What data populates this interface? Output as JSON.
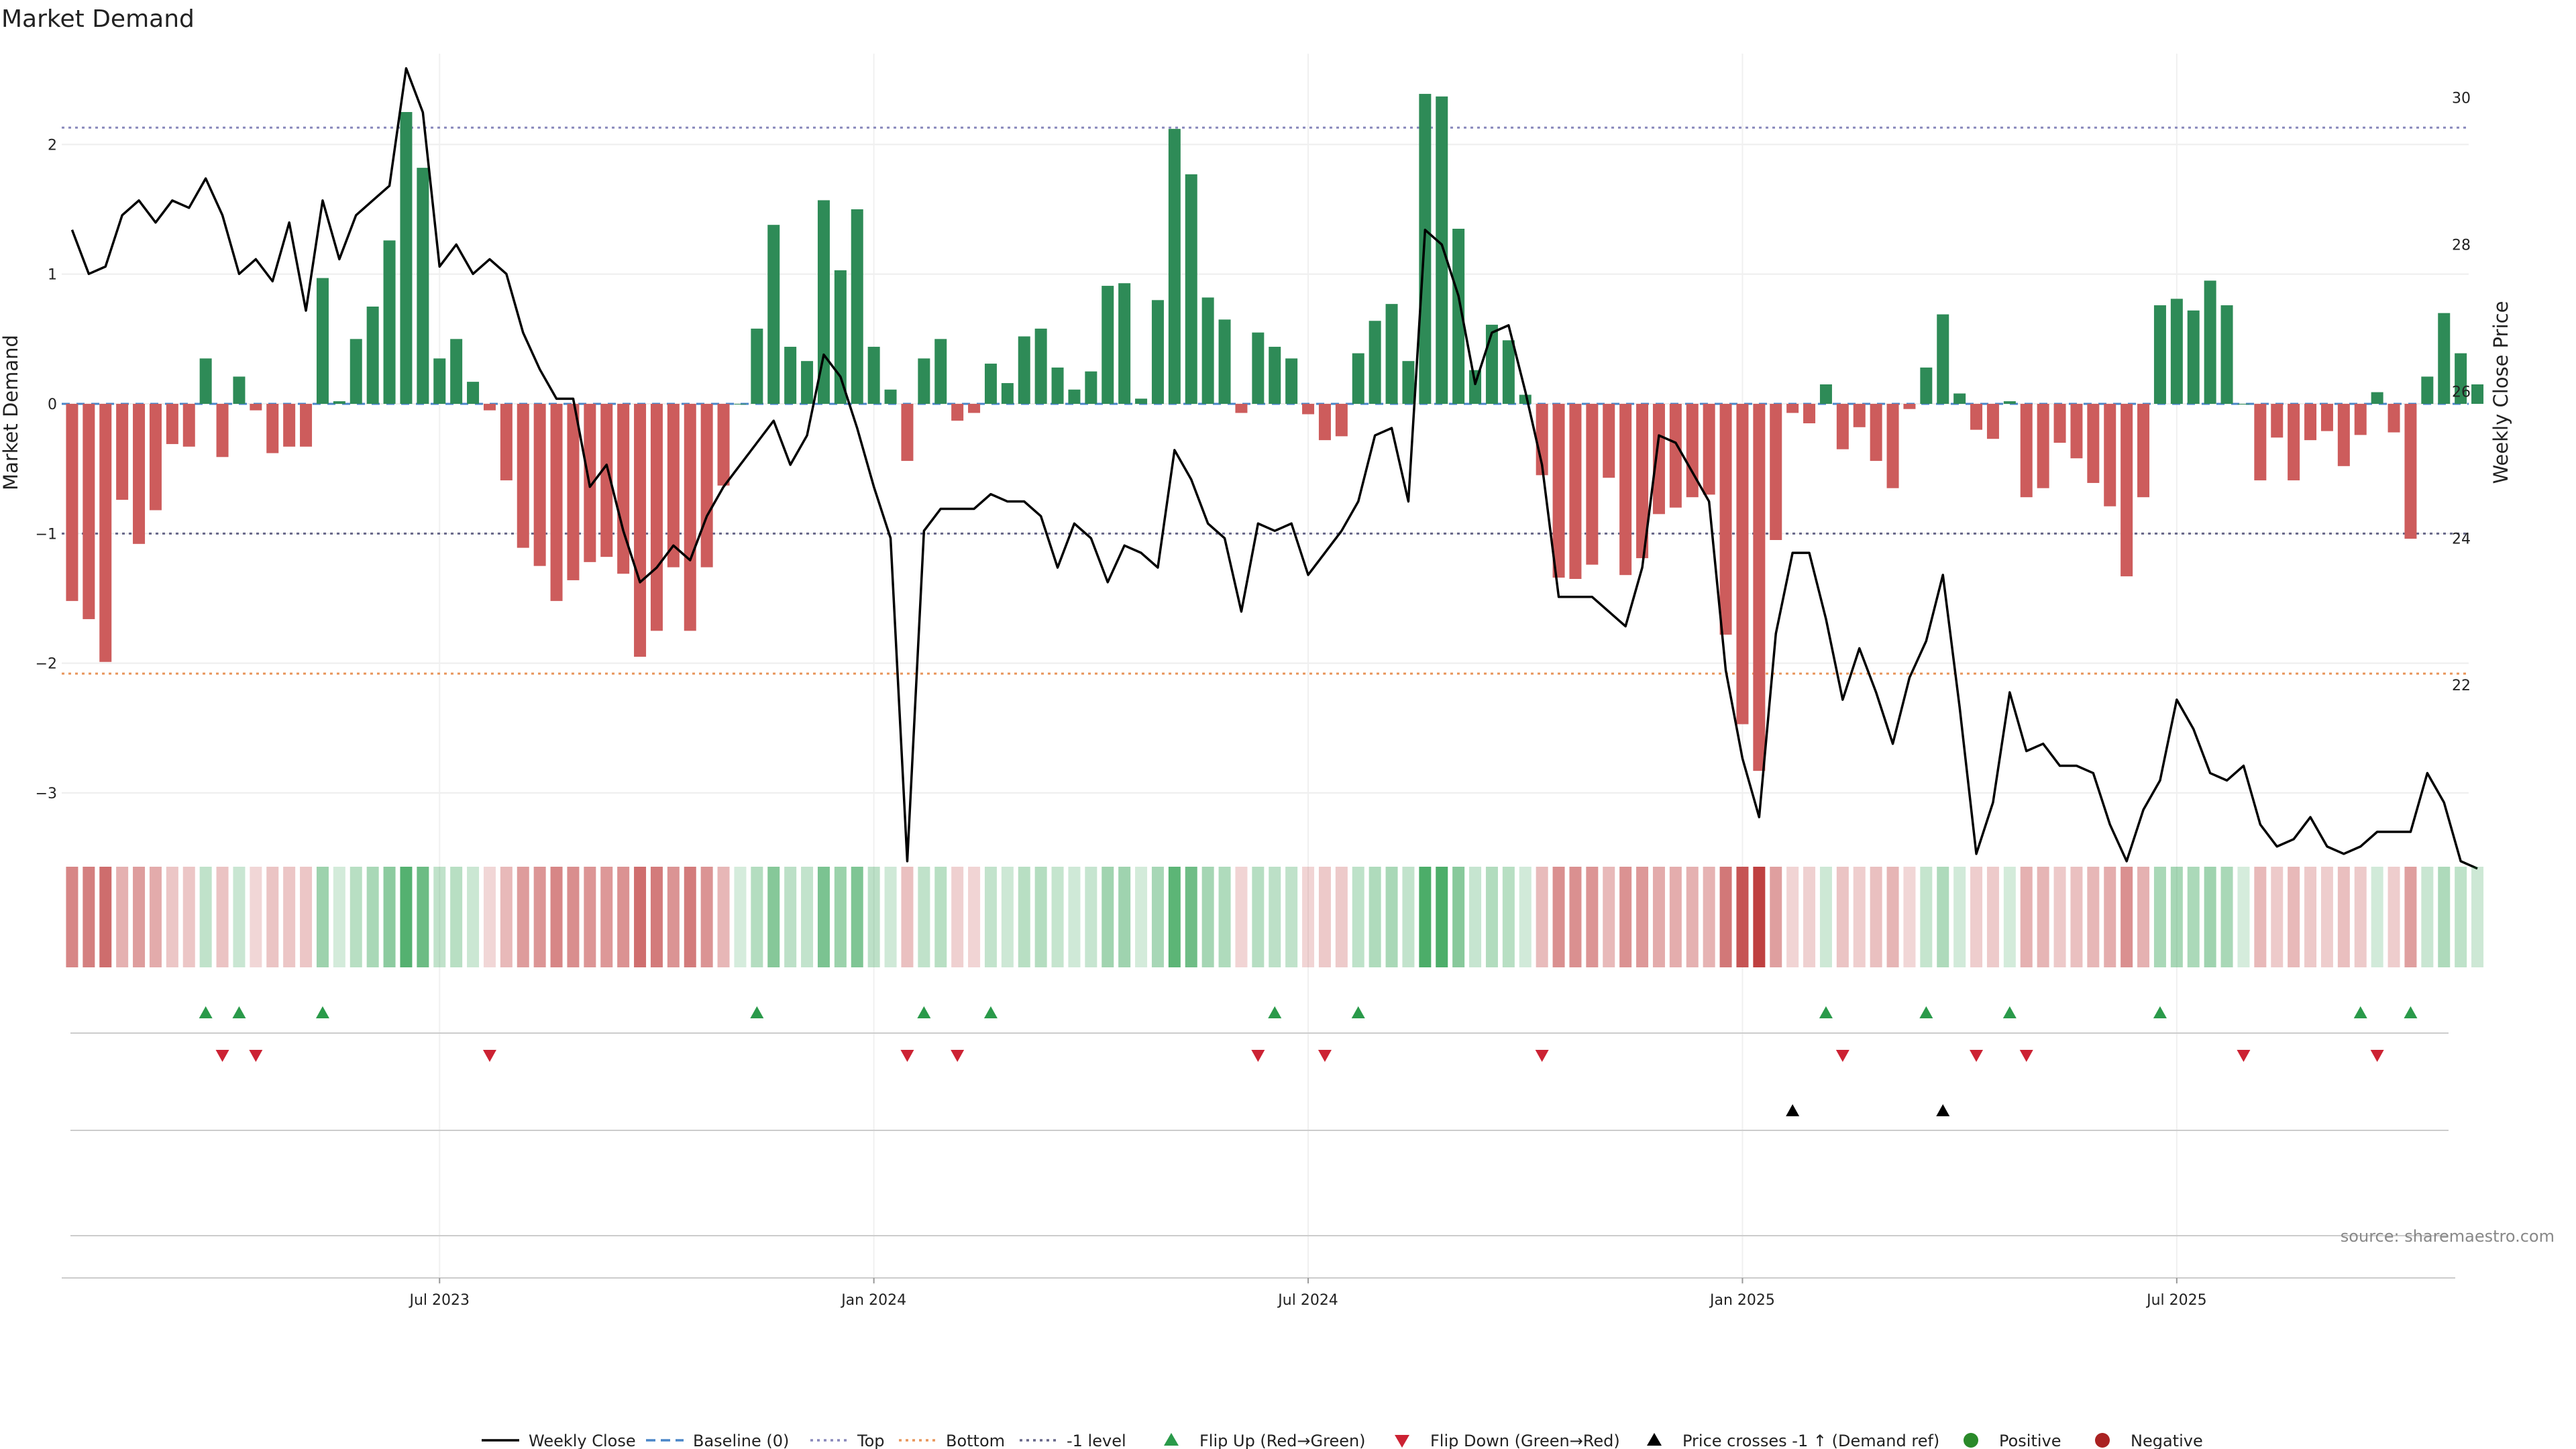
{
  "chart_data": {
    "type": "bar",
    "title": "Market Demand",
    "ylabel": "Market Demand",
    "y2label": "Weekly Close Price",
    "ylim": [
      -3.3,
      2.7
    ],
    "y2lim": [
      20.0,
      30.6
    ],
    "yticks": [
      -3,
      -2,
      -1,
      0,
      1,
      2
    ],
    "yticklabels": [
      "−3",
      "−2",
      "−1",
      "0",
      "1",
      "2"
    ],
    "y2ticks": [
      22,
      24,
      26,
      28,
      30
    ],
    "reference_lines": {
      "top": 2.13,
      "minus_one": -1.0,
      "bottom": -2.08,
      "baseline": 0
    },
    "x": {
      "start": "2023-02-05",
      "weeks": 144,
      "tick_weeks": [
        22,
        48,
        74,
        100,
        126
      ],
      "tick_labels": [
        "Jul 2023",
        "Jan 2024",
        "Jul 2024",
        "Jan 2025",
        "Jul 2025"
      ]
    },
    "series": [
      {
        "name": "Market Demand",
        "values": [
          -1.52,
          -1.66,
          -1.99,
          -0.74,
          -1.08,
          -0.82,
          -0.31,
          -0.33,
          0.35,
          -0.41,
          0.21,
          -0.05,
          -0.38,
          -0.33,
          -0.33,
          0.97,
          0.02,
          0.5,
          0.75,
          1.26,
          2.25,
          1.82,
          0.35,
          0.5,
          0.17,
          -0.05,
          -0.59,
          -1.11,
          -1.25,
          -1.52,
          -1.36,
          -1.22,
          -1.18,
          -1.31,
          -1.95,
          -1.75,
          -1.26,
          -1.75,
          -1.26,
          -0.63,
          0.0,
          0.58,
          1.38,
          0.44,
          0.33,
          1.57,
          1.03,
          1.5,
          0.44,
          0.11,
          -0.44,
          0.35,
          0.5,
          -0.13,
          -0.07,
          0.31,
          0.16,
          0.52,
          0.58,
          0.28,
          0.11,
          0.25,
          0.91,
          0.93,
          0.04,
          0.8,
          2.12,
          1.77,
          0.82,
          0.65,
          -0.07,
          0.55,
          0.44,
          0.35,
          -0.08,
          -0.28,
          -0.25,
          0.39,
          0.64,
          0.77,
          0.33,
          2.39,
          2.37,
          1.35,
          0.26,
          0.61,
          0.49,
          0.07,
          -0.55,
          -1.34,
          -1.35,
          -1.24,
          -0.57,
          -1.32,
          -1.19,
          -0.85,
          -0.8,
          -0.72,
          -0.7,
          -1.78,
          -2.47,
          -2.83,
          -1.05,
          -0.07,
          -0.15,
          0.15,
          -0.35,
          -0.18,
          -0.44,
          -0.65,
          -0.04,
          0.28,
          0.69,
          0.08,
          -0.2,
          -0.27,
          0.02,
          -0.72,
          -0.65,
          -0.3,
          -0.42,
          -0.61,
          -0.79,
          -1.33,
          -0.72,
          0.76,
          0.81,
          0.72,
          0.95,
          0.76,
          0.0,
          -0.59,
          -0.26,
          -0.59,
          -0.28,
          -0.21,
          -0.48,
          -0.24,
          0.09,
          -0.22,
          -1.04,
          0.21,
          0.7,
          0.39,
          0.15
        ]
      },
      {
        "name": "Weekly Close",
        "values": [
          28.2,
          27.6,
          27.7,
          28.4,
          28.6,
          28.3,
          28.6,
          28.5,
          28.9,
          28.4,
          27.6,
          27.8,
          27.5,
          28.3,
          27.1,
          28.6,
          27.8,
          28.4,
          28.6,
          28.8,
          30.4,
          29.8,
          27.7,
          28.0,
          27.6,
          27.8,
          27.6,
          26.8,
          26.3,
          25.9,
          25.9,
          24.7,
          25.0,
          24.1,
          23.4,
          23.6,
          23.9,
          23.7,
          24.3,
          24.7,
          25.0,
          25.3,
          25.6,
          25.0,
          25.4,
          26.5,
          26.2,
          25.5,
          24.7,
          24.0,
          19.6,
          24.1,
          24.4,
          24.4,
          24.4,
          24.6,
          24.5,
          24.5,
          24.3,
          23.6,
          24.2,
          24.0,
          23.4,
          23.9,
          23.8,
          23.6,
          25.2,
          24.8,
          24.2,
          24.0,
          23.0,
          24.2,
          24.1,
          24.2,
          23.5,
          23.8,
          24.1,
          24.5,
          25.4,
          25.5,
          24.5,
          28.2,
          28.0,
          27.3,
          26.1,
          26.8,
          26.9,
          26.0,
          25.0,
          23.2,
          23.2,
          23.2,
          23.0,
          22.8,
          23.6,
          25.4,
          25.3,
          24.9,
          24.5,
          22.2,
          21.0,
          20.2,
          22.7,
          23.8,
          23.8,
          22.9,
          21.8,
          22.5,
          21.9,
          21.2,
          22.1,
          22.6,
          23.5,
          21.7,
          19.7,
          20.4,
          21.9,
          21.1,
          21.2,
          20.9,
          20.9,
          20.8,
          20.1,
          19.6,
          20.3,
          20.7,
          21.8,
          21.4,
          20.8,
          20.7,
          20.9,
          20.1,
          19.8,
          19.9,
          20.2,
          19.8,
          19.7,
          19.8,
          20.0,
          20.0,
          20.0,
          20.8,
          20.4,
          19.6,
          19.5
        ]
      }
    ],
    "flip_up_weeks": [
      8,
      10,
      15,
      41,
      51,
      55,
      72,
      77,
      105,
      111,
      116,
      125,
      137,
      140
    ],
    "flip_down_weeks": [
      9,
      11,
      25,
      50,
      53,
      71,
      75,
      88,
      106,
      114,
      117,
      130,
      138
    ],
    "price_cross_up_weeks": [
      103,
      112
    ],
    "colors": {
      "positive": "#2e8b57",
      "negative": "#cd5c5c",
      "close_line": "#000000",
      "baseline": "#4a86c8",
      "top": "#8888bb",
      "bottom": "#e8955a",
      "minus_one": "#666688",
      "flip_up": "#2a9a4a",
      "flip_down": "#cc2233",
      "cross": "#000000",
      "positive_dot": "#2a8a2a",
      "negative_dot": "#aa2222"
    },
    "legend": {
      "placement": "bottom",
      "items": [
        {
          "label": "Weekly Close",
          "icon": "solid-line"
        },
        {
          "label": "Baseline (0)",
          "icon": "dashed-line"
        },
        {
          "label": "Top",
          "icon": "dotted-line"
        },
        {
          "label": "Bottom",
          "icon": "dotted-line"
        },
        {
          "label": "-1 level",
          "icon": "dotted-line"
        },
        {
          "label": "Flip Up (Red→Green)",
          "icon": "triangle-up"
        },
        {
          "label": "Flip Down (Green→Red)",
          "icon": "triangle-down"
        },
        {
          "label": "Price crosses -1 ↑ (Demand ref)",
          "icon": "triangle-up"
        },
        {
          "label": "Positive",
          "icon": "circle"
        },
        {
          "label": "Negative",
          "icon": "circle"
        }
      ]
    },
    "source": "source: sharemaestro.com",
    "grid": true
  }
}
